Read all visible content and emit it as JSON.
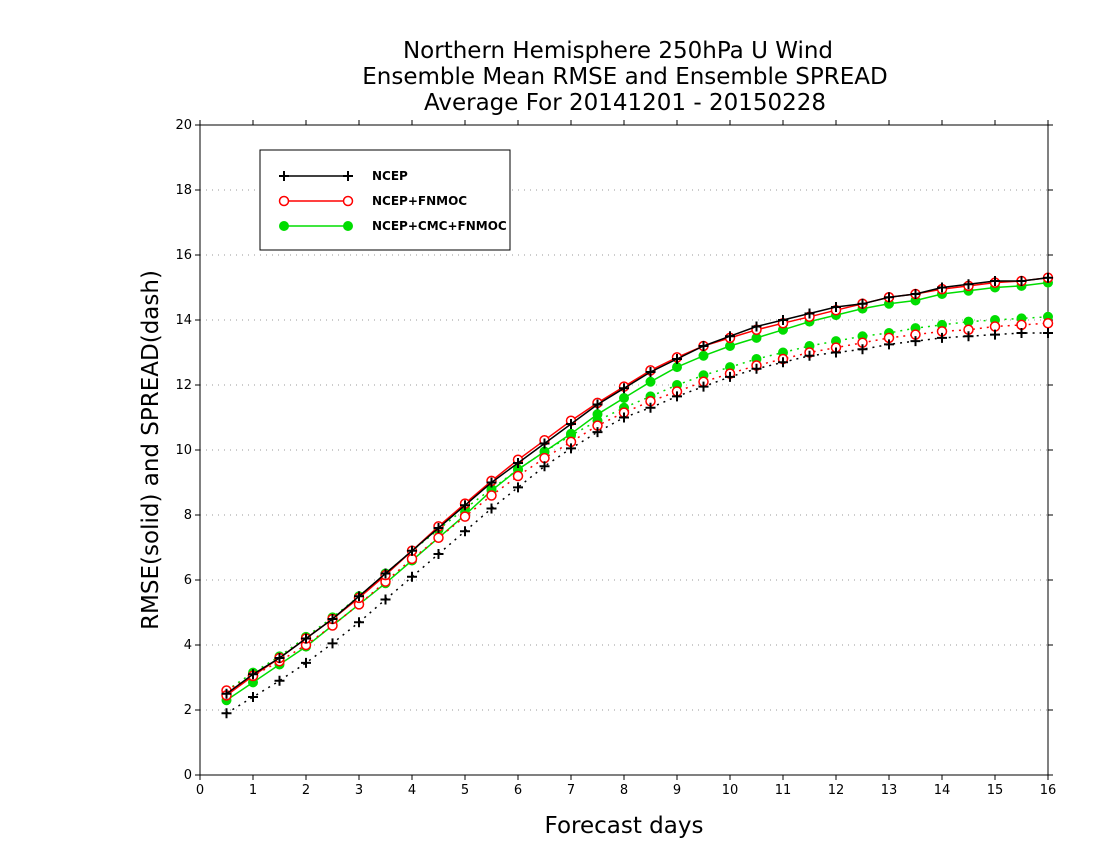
{
  "chart_data": {
    "type": "line",
    "title_lines": [
      "Northern Hemisphere 250hPa U Wind",
      "Ensemble Mean RMSE and Ensemble SPREAD",
      "Average For 20141201 - 20150228"
    ],
    "xlabel": "Forecast days",
    "ylabel": "RMSE(solid) and SPREAD(dash)",
    "xlim": [
      0,
      16
    ],
    "ylim": [
      0,
      20
    ],
    "xticks": [
      0,
      1,
      2,
      3,
      4,
      5,
      6,
      7,
      8,
      9,
      10,
      11,
      12,
      13,
      14,
      15,
      16
    ],
    "yticks": [
      0,
      2,
      4,
      6,
      8,
      10,
      12,
      14,
      16,
      18,
      20
    ],
    "grid": "horizontal dotted",
    "legend_position": "top-left",
    "x": [
      0.5,
      1,
      1.5,
      2,
      2.5,
      3,
      3.5,
      4,
      4.5,
      5,
      5.5,
      6,
      6.5,
      7,
      7.5,
      8,
      8.5,
      9,
      9.5,
      10,
      10.5,
      11,
      11.5,
      12,
      12.5,
      13,
      13.5,
      14,
      14.5,
      15,
      15.5,
      16
    ],
    "series": [
      {
        "name": "NCEP",
        "color": "#000000",
        "marker": "plus",
        "rmse": [
          2.5,
          3.1,
          3.6,
          4.2,
          4.8,
          5.5,
          6.2,
          6.9,
          7.6,
          8.3,
          9.0,
          9.6,
          10.2,
          10.8,
          11.4,
          11.9,
          12.4,
          12.8,
          13.2,
          13.5,
          13.8,
          14.0,
          14.2,
          14.4,
          14.5,
          14.7,
          14.8,
          15.0,
          15.1,
          15.2,
          15.2,
          15.3
        ],
        "spread": [
          1.9,
          2.4,
          2.9,
          3.45,
          4.05,
          4.7,
          5.4,
          6.1,
          6.8,
          7.5,
          8.2,
          8.85,
          9.5,
          10.05,
          10.55,
          11.0,
          11.3,
          11.65,
          11.95,
          12.25,
          12.5,
          12.7,
          12.9,
          13.0,
          13.1,
          13.25,
          13.35,
          13.45,
          13.5,
          13.55,
          13.6,
          13.6
        ]
      },
      {
        "name": "NCEP+FNMOC",
        "color": "#ff0000",
        "marker": "open-circle",
        "rmse": [
          2.45,
          3.05,
          3.6,
          4.2,
          4.8,
          5.45,
          6.15,
          6.9,
          7.65,
          8.35,
          9.05,
          9.7,
          10.3,
          10.9,
          11.45,
          11.95,
          12.45,
          12.85,
          13.2,
          13.45,
          13.7,
          13.9,
          14.1,
          14.3,
          14.5,
          14.7,
          14.8,
          14.95,
          15.05,
          15.15,
          15.2,
          15.3
        ],
        "spread": [
          2.6,
          3.05,
          3.5,
          4.0,
          4.6,
          5.25,
          5.95,
          6.65,
          7.3,
          7.95,
          8.6,
          9.2,
          9.75,
          10.25,
          10.75,
          11.15,
          11.5,
          11.8,
          12.1,
          12.35,
          12.6,
          12.8,
          13.0,
          13.15,
          13.3,
          13.45,
          13.55,
          13.65,
          13.7,
          13.8,
          13.85,
          13.9
        ]
      },
      {
        "name": "NCEP+CMC+FNMOC",
        "color": "#00dd00",
        "marker": "filled-circle",
        "rmse": [
          2.3,
          2.85,
          3.4,
          3.95,
          4.6,
          5.25,
          5.9,
          6.6,
          7.3,
          8.0,
          8.75,
          9.4,
          9.95,
          10.5,
          11.1,
          11.6,
          12.1,
          12.55,
          12.9,
          13.2,
          13.45,
          13.7,
          13.95,
          14.15,
          14.35,
          14.5,
          14.6,
          14.8,
          14.9,
          15.0,
          15.05,
          15.15
        ],
        "spread": [
          2.6,
          3.15,
          3.65,
          4.25,
          4.85,
          5.5,
          6.2,
          6.9,
          7.55,
          8.2,
          8.8,
          9.4,
          9.95,
          10.45,
          10.9,
          11.3,
          11.65,
          12.0,
          12.3,
          12.55,
          12.8,
          13.0,
          13.2,
          13.35,
          13.5,
          13.6,
          13.75,
          13.85,
          13.95,
          14.0,
          14.05,
          14.1
        ]
      }
    ]
  }
}
